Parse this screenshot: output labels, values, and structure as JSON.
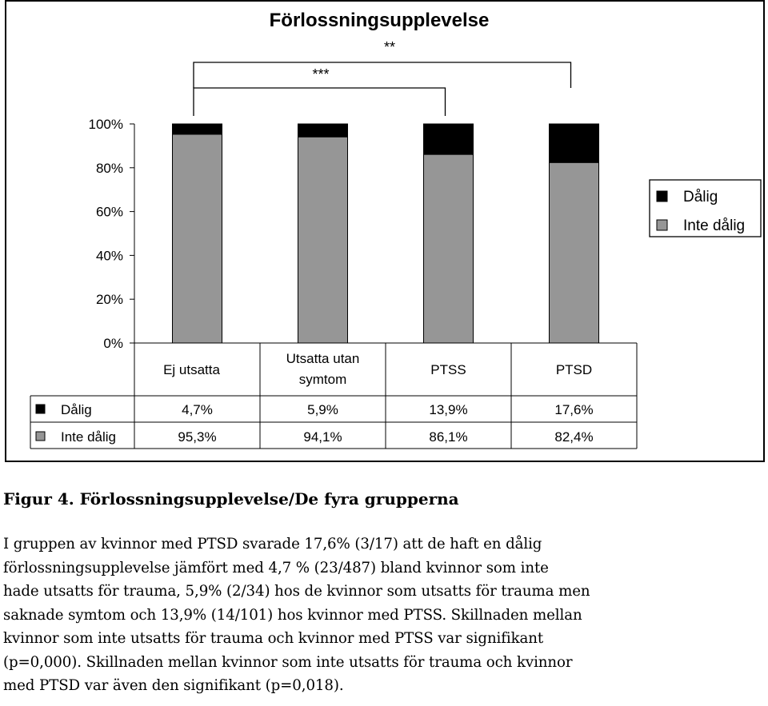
{
  "chart_data": {
    "type": "bar",
    "stacked": true,
    "percent": true,
    "title": "Förlossningsupplevelse",
    "categories": [
      "Ej utsatta",
      "Utsatta utan symtom",
      "PTSS",
      "PTSD"
    ],
    "category_lines": [
      [
        "Ej utsatta"
      ],
      [
        "Utsatta utan",
        "symtom"
      ],
      [
        "PTSS"
      ],
      [
        "PTSD"
      ]
    ],
    "series": [
      {
        "name": "Inte dålig",
        "color": "#969696",
        "values": [
          95.3,
          94.1,
          86.1,
          82.4
        ],
        "labels": [
          "95,3%",
          "94,1%",
          "86,1%",
          "82,4%"
        ]
      },
      {
        "name": "Dålig",
        "color": "#000000",
        "values": [
          4.7,
          5.9,
          13.9,
          17.6
        ],
        "labels": [
          "4,7%",
          "5,9%",
          "13,9%",
          "17,6%"
        ]
      }
    ],
    "legend_order": [
      "Dålig",
      "Inte dålig"
    ],
    "yticks": [
      "0%",
      "20%",
      "40%",
      "60%",
      "80%",
      "100%"
    ],
    "ylim": [
      0,
      100
    ],
    "significance": [
      {
        "from": "Ej utsatta",
        "to": "PTSS",
        "label": "***"
      },
      {
        "from": "Ej utsatta",
        "to": "PTSD",
        "label": "**"
      }
    ]
  },
  "caption": {
    "title": "Figur 4. Förlossningsupplevelse/De fyra grupperna",
    "lines": [
      "I gruppen av kvinnor med PTSD svarade 17,6% (3/17) att de haft en dålig",
      "förlossningsupplevelse jämfört med 4,7 % (23/487) bland kvinnor som inte",
      "hade utsatts för trauma, 5,9% (2/34) hos de kvinnor som utsatts för trauma men",
      "saknade symtom och 13,9% (14/101) hos kvinnor med PTSS. Skillnaden mellan",
      "kvinnor som inte utsatts för trauma och kvinnor med PTSS var signifikant",
      "(p=0,000). Skillnaden mellan kvinnor som inte utsatts för trauma och kvinnor",
      "med PTSD var även den signifikant (p=0,018)."
    ]
  }
}
